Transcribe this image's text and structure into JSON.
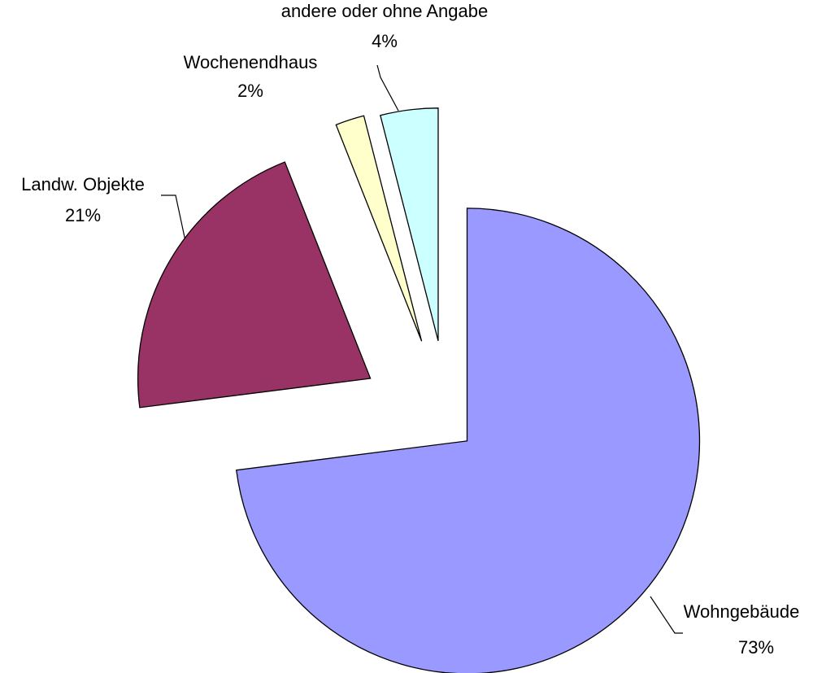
{
  "chart_data": {
    "type": "pie",
    "categories": [
      "Wohngebäude",
      "Landw. Objekte",
      "Wochenendhaus",
      "andere oder ohne Angabe"
    ],
    "values": [
      73,
      21,
      2,
      4
    ],
    "value_labels": [
      "73%",
      "21%",
      "2%",
      "4%"
    ],
    "colors": [
      "#9999ff",
      "#993366",
      "#ffffcc",
      "#ccffff"
    ]
  }
}
